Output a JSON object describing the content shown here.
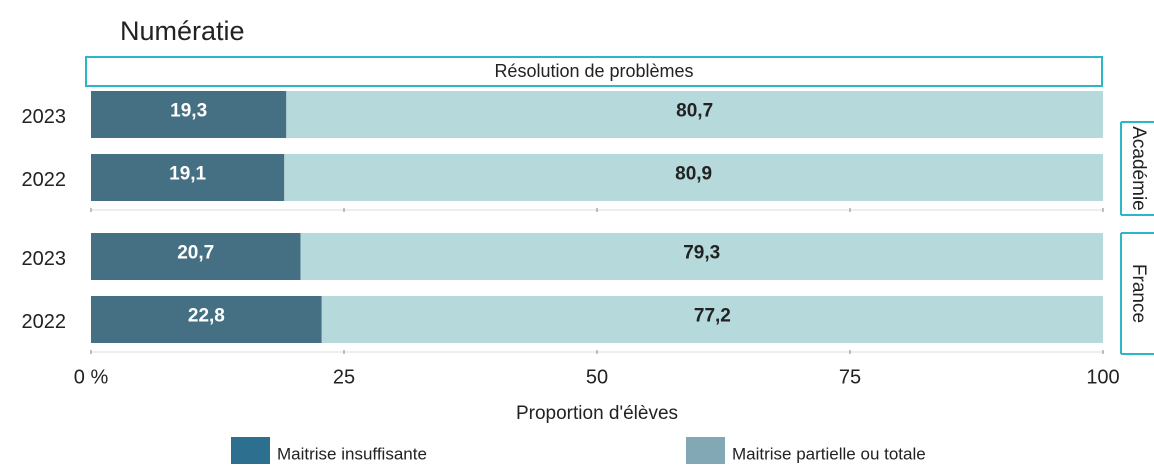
{
  "chart_data": {
    "type": "bar",
    "orientation": "horizontal",
    "stacked": true,
    "title": "Numératie",
    "strip_title": "Résolution de problèmes",
    "xlabel": "Proportion d'élèves",
    "categories": [
      "2023",
      "2022",
      "2023",
      "2022"
    ],
    "panels": [
      "Académie",
      "Académie",
      "France",
      "France"
    ],
    "series": [
      {
        "name": "Maitrise insuffisante",
        "color": "#456f83",
        "legend_color": "#2d6f8f",
        "label_color": "#ffffff",
        "values": [
          19.3,
          19.1,
          20.7,
          22.8
        ],
        "value_labels": [
          "19,3",
          "19,1",
          "20,7",
          "22,8"
        ]
      },
      {
        "name": "Maitrise partielle ou totale",
        "color": "#b6d9db",
        "legend_color": "#82a8b6",
        "label_color": "#222222",
        "values": [
          80.7,
          80.9,
          79.3,
          77.2
        ],
        "value_labels": [
          "80,7",
          "80,9",
          "79,3",
          "77,2"
        ]
      }
    ],
    "xlim": [
      0,
      100
    ],
    "xticks": [
      {
        "value": 0,
        "label": "0 %"
      },
      25,
      50,
      75,
      100
    ]
  }
}
